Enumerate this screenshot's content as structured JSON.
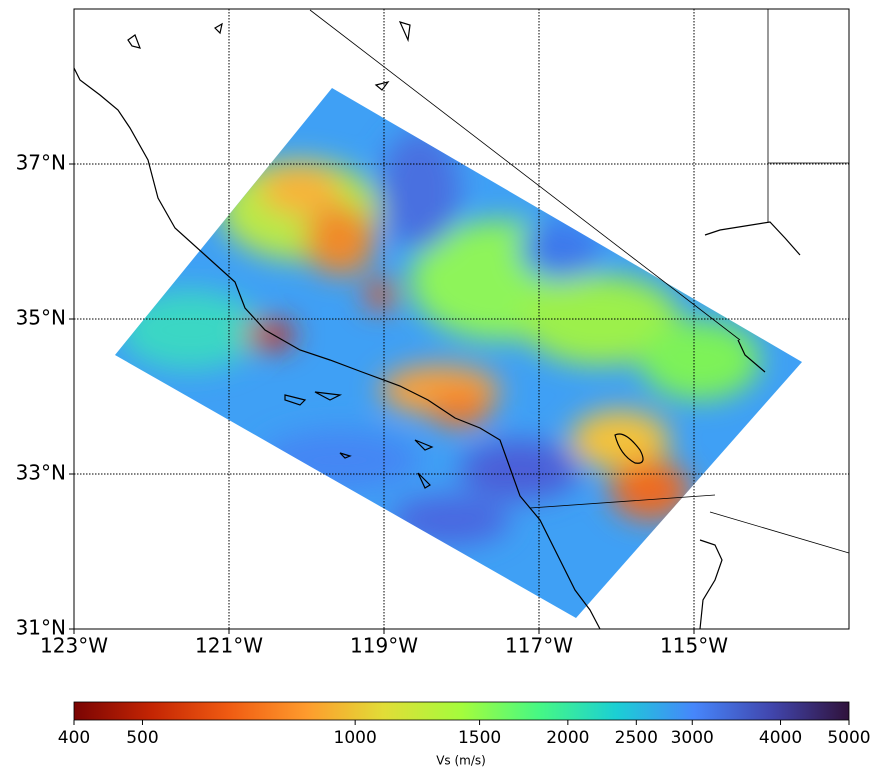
{
  "map": {
    "lon_range": [
      -123,
      -113
    ],
    "lat_range": [
      31,
      39
    ],
    "xticks": [
      {
        "value": -123,
        "label": "123°W"
      },
      {
        "value": -121,
        "label": "121°W"
      },
      {
        "value": -119,
        "label": "119°W"
      },
      {
        "value": -117,
        "label": "117°W"
      },
      {
        "value": -115,
        "label": "115°W"
      }
    ],
    "yticks": [
      {
        "value": 31,
        "label": "31°N"
      },
      {
        "value": 33,
        "label": "33°N"
      },
      {
        "value": 35,
        "label": "35°N"
      },
      {
        "value": 37,
        "label": "37°N"
      }
    ],
    "grid": true
  },
  "colorbar": {
    "label": "Vs (m/s)",
    "range": [
      400,
      5000
    ],
    "scale": "log",
    "colormap": "turbo_r",
    "ticks": [
      400,
      500,
      1000,
      1500,
      2000,
      2500,
      3000,
      4000,
      5000
    ]
  }
}
